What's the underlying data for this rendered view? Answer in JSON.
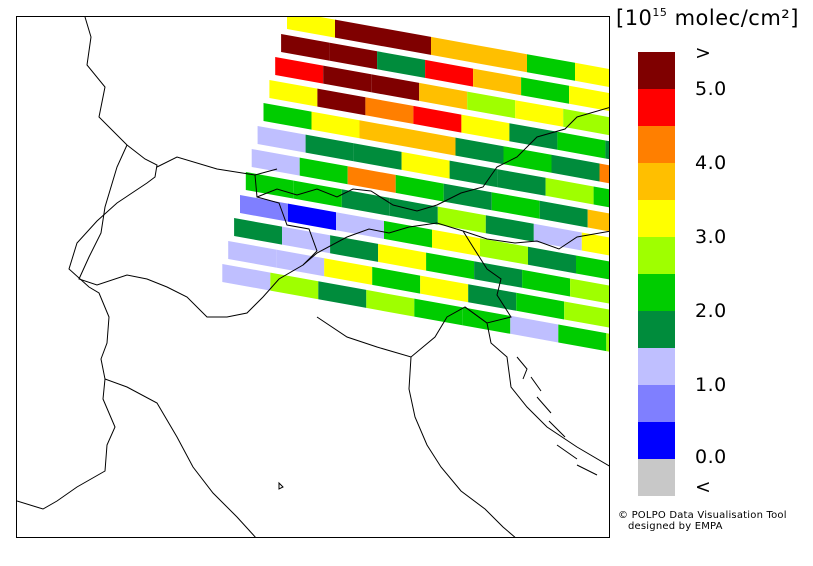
{
  "legend": {
    "title_prefix": "[10",
    "title_exponent": "15",
    "title_suffix": " molec/cm²]",
    "colors": [
      "#7f0000",
      "#ff0000",
      "#ff7f00",
      "#ffbf00",
      "#ffff00",
      "#9fff00",
      "#00cc00",
      "#008c3c",
      "#bfbfff",
      "#7f7fff",
      "#0000ff",
      "#c8c8c8"
    ],
    "labels": [
      ">",
      "5.0",
      "4.0",
      "3.0",
      "2.0",
      "1.0",
      "0.0",
      "<"
    ]
  },
  "credit": {
    "line1": "© POLPO Data Visualisation Tool",
    "line2": "designed by EMPA"
  },
  "map": {
    "coastline_color": "#000000",
    "swath_rows": [
      [
        4,
        0,
        0,
        3,
        3,
        6,
        4,
        6,
        6
      ],
      [
        0,
        0,
        7,
        1,
        3,
        6,
        4,
        7,
        6
      ],
      [
        1,
        0,
        0,
        3,
        5,
        4,
        5,
        7,
        6
      ],
      [
        4,
        0,
        2,
        1,
        4,
        7,
        6,
        7,
        5
      ],
      [
        6,
        4,
        3,
        3,
        7,
        6,
        7,
        2,
        4
      ],
      [
        8,
        7,
        7,
        4,
        7,
        7,
        5,
        6,
        5
      ],
      [
        8,
        6,
        2,
        6,
        7,
        6,
        7,
        3,
        3
      ],
      [
        6,
        6,
        7,
        7,
        5,
        7,
        8,
        4,
        5
      ],
      [
        9,
        10,
        8,
        6,
        4,
        5,
        7,
        6,
        7
      ],
      [
        7,
        8,
        7,
        4,
        6,
        7,
        6,
        5,
        5
      ],
      [
        8,
        8,
        4,
        6,
        4,
        7,
        6,
        5,
        5
      ],
      [
        8,
        5,
        7,
        5,
        6,
        6,
        8,
        6,
        5
      ]
    ]
  }
}
